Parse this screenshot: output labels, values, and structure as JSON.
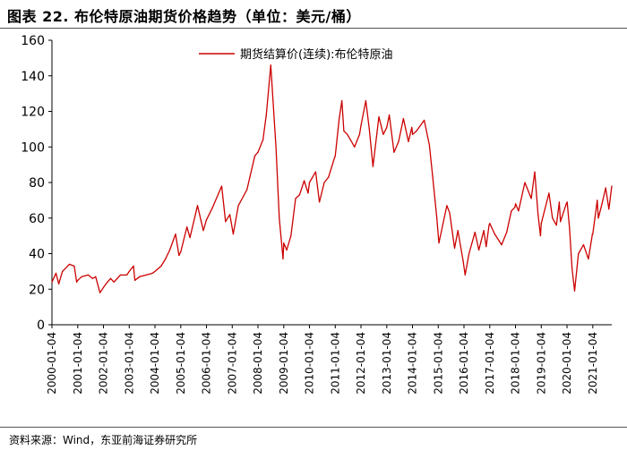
{
  "header": {
    "title": "图表 22. 布伦特原油期货价格趋势（单位：美元/桶）"
  },
  "footer": {
    "source": "资料来源：Wind，东亚前海证券研究所"
  },
  "chart_data": {
    "type": "line",
    "title": "",
    "xlabel": "",
    "ylabel": "",
    "ylim": [
      0,
      160
    ],
    "yticks": [
      "0",
      "20",
      "40",
      "60",
      "80",
      "100",
      "120",
      "140",
      "160"
    ],
    "xticks": [
      "2000-01-04",
      "2001-01-04",
      "2002-01-04",
      "2003-01-04",
      "2004-01-04",
      "2005-01-04",
      "2006-01-04",
      "2007-01-04",
      "2008-01-04",
      "2009-01-04",
      "2010-01-04",
      "2011-01-04",
      "2012-01-04",
      "2013-01-04",
      "2014-01-04",
      "2015-01-04",
      "2016-01-04",
      "2017-01-04",
      "2018-01-04",
      "2019-01-04",
      "2020-01-04",
      "2021-01-04"
    ],
    "xlim": [
      "2000-01-04",
      "2021-09-30"
    ],
    "grid": false,
    "legend_position": "top-center",
    "series": [
      {
        "name": "期货结算价(连续):布伦特原油",
        "color": "#cc0000",
        "points": [
          [
            "2000-01-04",
            24
          ],
          [
            "2000-03-01",
            29
          ],
          [
            "2000-04-10",
            23
          ],
          [
            "2000-06-01",
            30
          ],
          [
            "2000-09-07",
            34
          ],
          [
            "2000-11-15",
            33
          ],
          [
            "2000-12-20",
            24
          ],
          [
            "2001-01-04",
            25
          ],
          [
            "2001-03-01",
            27
          ],
          [
            "2001-06-01",
            28
          ],
          [
            "2001-08-01",
            26
          ],
          [
            "2001-09-15",
            27
          ],
          [
            "2001-11-15",
            18
          ],
          [
            "2002-01-04",
            21
          ],
          [
            "2002-03-01",
            24
          ],
          [
            "2002-04-15",
            26
          ],
          [
            "2002-06-01",
            24
          ],
          [
            "2002-09-01",
            28
          ],
          [
            "2002-12-01",
            28
          ],
          [
            "2003-01-04",
            30
          ],
          [
            "2003-03-05",
            33
          ],
          [
            "2003-03-25",
            25
          ],
          [
            "2003-06-01",
            27
          ],
          [
            "2003-09-01",
            28
          ],
          [
            "2003-12-01",
            29
          ],
          [
            "2004-01-04",
            30
          ],
          [
            "2004-04-01",
            33
          ],
          [
            "2004-06-01",
            37
          ],
          [
            "2004-08-01",
            42
          ],
          [
            "2004-10-22",
            51
          ],
          [
            "2004-12-10",
            39
          ],
          [
            "2005-01-04",
            41
          ],
          [
            "2005-04-01",
            55
          ],
          [
            "2005-05-15",
            49
          ],
          [
            "2005-08-30",
            67
          ],
          [
            "2005-11-20",
            53
          ],
          [
            "2006-01-04",
            59
          ],
          [
            "2006-04-01",
            66
          ],
          [
            "2006-08-08",
            78
          ],
          [
            "2006-10-01",
            58
          ],
          [
            "2006-12-01",
            62
          ],
          [
            "2007-01-18",
            51
          ],
          [
            "2007-04-01",
            67
          ],
          [
            "2007-08-01",
            76
          ],
          [
            "2007-11-20",
            95
          ],
          [
            "2008-01-04",
            97
          ],
          [
            "2008-03-15",
            104
          ],
          [
            "2008-05-01",
            118
          ],
          [
            "2008-07-03",
            146
          ],
          [
            "2008-09-15",
            100
          ],
          [
            "2008-11-01",
            60
          ],
          [
            "2008-12-24",
            37
          ],
          [
            "2009-01-04",
            46
          ],
          [
            "2009-02-15",
            42
          ],
          [
            "2009-04-15",
            50
          ],
          [
            "2009-06-20",
            71
          ],
          [
            "2009-08-15",
            73
          ],
          [
            "2009-10-21",
            81
          ],
          [
            "2009-12-15",
            74
          ],
          [
            "2010-01-04",
            80
          ],
          [
            "2010-04-01",
            86
          ],
          [
            "2010-05-25",
            69
          ],
          [
            "2010-08-01",
            80
          ],
          [
            "2010-10-01",
            83
          ],
          [
            "2010-12-25",
            94
          ],
          [
            "2011-01-04",
            95
          ],
          [
            "2011-03-01",
            116
          ],
          [
            "2011-04-08",
            126
          ],
          [
            "2011-05-06",
            109
          ],
          [
            "2011-06-25",
            107
          ],
          [
            "2011-08-08",
            104
          ],
          [
            "2011-10-04",
            100
          ],
          [
            "2011-12-15",
            107
          ],
          [
            "2012-01-04",
            112
          ],
          [
            "2012-03-13",
            126
          ],
          [
            "2012-05-01",
            110
          ],
          [
            "2012-06-22",
            89
          ],
          [
            "2012-09-14",
            117
          ],
          [
            "2012-11-15",
            107
          ],
          [
            "2013-01-04",
            111
          ],
          [
            "2013-02-08",
            118
          ],
          [
            "2013-04-17",
            97
          ],
          [
            "2013-06-20",
            103
          ],
          [
            "2013-08-28",
            116
          ],
          [
            "2013-11-07",
            103
          ],
          [
            "2013-12-25",
            111
          ],
          [
            "2014-01-04",
            107
          ],
          [
            "2014-03-01",
            109
          ],
          [
            "2014-06-19",
            115
          ],
          [
            "2014-09-01",
            101
          ],
          [
            "2014-10-15",
            84
          ],
          [
            "2014-12-15",
            60
          ],
          [
            "2015-01-13",
            46
          ],
          [
            "2015-05-06",
            67
          ],
          [
            "2015-06-15",
            63
          ],
          [
            "2015-08-24",
            43
          ],
          [
            "2015-10-09",
            53
          ],
          [
            "2015-12-22",
            36
          ],
          [
            "2016-01-20",
            28
          ],
          [
            "2016-03-15",
            40
          ],
          [
            "2016-06-08",
            52
          ],
          [
            "2016-08-02",
            42
          ],
          [
            "2016-10-10",
            53
          ],
          [
            "2016-11-14",
            44
          ],
          [
            "2016-12-25",
            56
          ],
          [
            "2017-01-04",
            57
          ],
          [
            "2017-03-15",
            51
          ],
          [
            "2017-06-21",
            45
          ],
          [
            "2017-09-01",
            52
          ],
          [
            "2017-11-06",
            64
          ],
          [
            "2017-12-25",
            66
          ],
          [
            "2018-01-04",
            68
          ],
          [
            "2018-02-15",
            64
          ],
          [
            "2018-05-17",
            80
          ],
          [
            "2018-08-15",
            71
          ],
          [
            "2018-10-03",
            86
          ],
          [
            "2018-11-20",
            62
          ],
          [
            "2018-12-24",
            50
          ],
          [
            "2019-01-04",
            57
          ],
          [
            "2019-04-24",
            74
          ],
          [
            "2019-06-12",
            60
          ],
          [
            "2019-08-07",
            56
          ],
          [
            "2019-09-16",
            69
          ],
          [
            "2019-10-03",
            58
          ],
          [
            "2019-12-25",
            68
          ],
          [
            "2020-01-06",
            69
          ],
          [
            "2020-02-10",
            54
          ],
          [
            "2020-03-15",
            32
          ],
          [
            "2020-04-21",
            19
          ],
          [
            "2020-06-15",
            40
          ],
          [
            "2020-08-26",
            45
          ],
          [
            "2020-11-02",
            37
          ],
          [
            "2020-12-30",
            51
          ],
          [
            "2021-01-04",
            51
          ],
          [
            "2021-03-08",
            70
          ],
          [
            "2021-03-23",
            60
          ],
          [
            "2021-05-15",
            68
          ],
          [
            "2021-07-05",
            77
          ],
          [
            "2021-08-20",
            65
          ],
          [
            "2021-09-30",
            78
          ]
        ]
      }
    ]
  }
}
